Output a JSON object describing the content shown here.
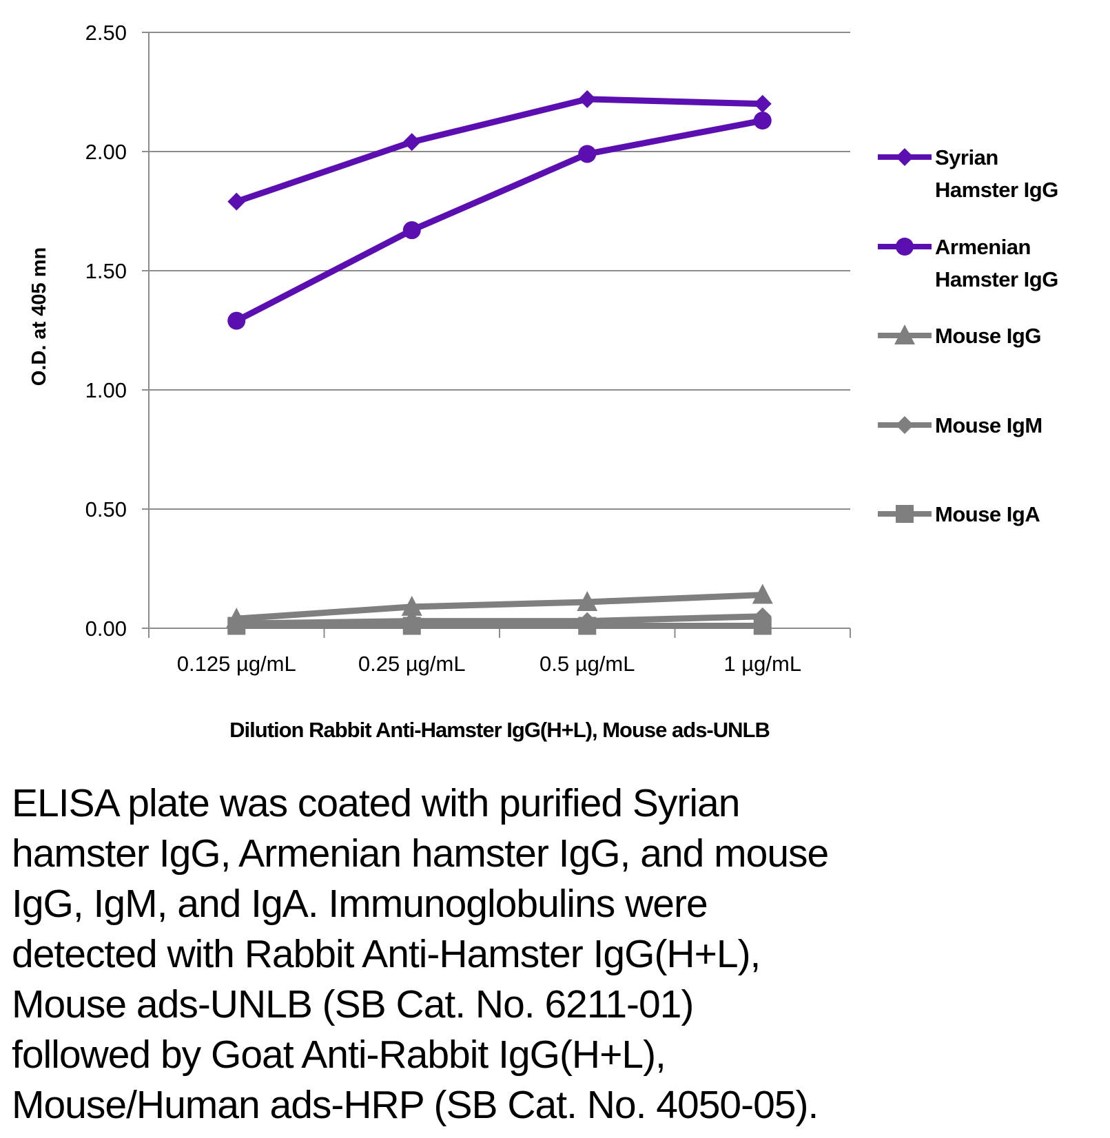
{
  "chart_data": {
    "type": "line",
    "title": "",
    "xlabel": "Dilution Rabbit Anti-Hamster IgG(H+L), Mouse ads-UNLB",
    "ylabel": "O.D. at 405 mn",
    "ylim": [
      0,
      2.5
    ],
    "yticks": [
      "0.00",
      "0.50",
      "1.00",
      "1.50",
      "2.00",
      "2.50"
    ],
    "grid": true,
    "legend": "right",
    "categories": [
      "0.125 µg/mL",
      "0.25 µg/mL",
      "0.5 µg/mL",
      "1 µg/mL"
    ],
    "series": [
      {
        "name": "Syrian Hamster IgG",
        "legend_lines": [
          "Syrian",
          "Hamster IgG"
        ],
        "color": "#5b0fb0",
        "marker": "diamond",
        "values": [
          1.79,
          2.04,
          2.22,
          2.2
        ]
      },
      {
        "name": "Armenian Hamster IgG",
        "legend_lines": [
          "Armenian",
          "Hamster IgG"
        ],
        "color": "#5b0fb0",
        "marker": "circle",
        "values": [
          1.29,
          1.67,
          1.99,
          2.13
        ]
      },
      {
        "name": "Mouse IgG",
        "legend_lines": [
          "Mouse IgG"
        ],
        "color": "#7f7f7f",
        "marker": "triangle",
        "values": [
          0.04,
          0.09,
          0.11,
          0.14
        ]
      },
      {
        "name": "Mouse IgM",
        "legend_lines": [
          "Mouse IgM"
        ],
        "color": "#7f7f7f",
        "marker": "diamond",
        "values": [
          0.02,
          0.03,
          0.03,
          0.05
        ]
      },
      {
        "name": "Mouse IgA",
        "legend_lines": [
          "Mouse IgA"
        ],
        "color": "#7f7f7f",
        "marker": "square",
        "values": [
          0.01,
          0.01,
          0.01,
          0.01
        ]
      }
    ]
  },
  "caption": {
    "lines": [
      "ELISA plate was coated with purified Syrian",
      "hamster IgG, Armenian hamster IgG, and mouse",
      "IgG, IgM, and IgA.  Immunoglobulins were",
      "detected with Rabbit Anti-Hamster IgG(H+L),",
      "Mouse ads-UNLB (SB Cat. No. 6211-01)",
      "followed by Goat Anti-Rabbit IgG(H+L),",
      "Mouse/Human ads-HRP (SB Cat. No. 4050-05)."
    ]
  }
}
